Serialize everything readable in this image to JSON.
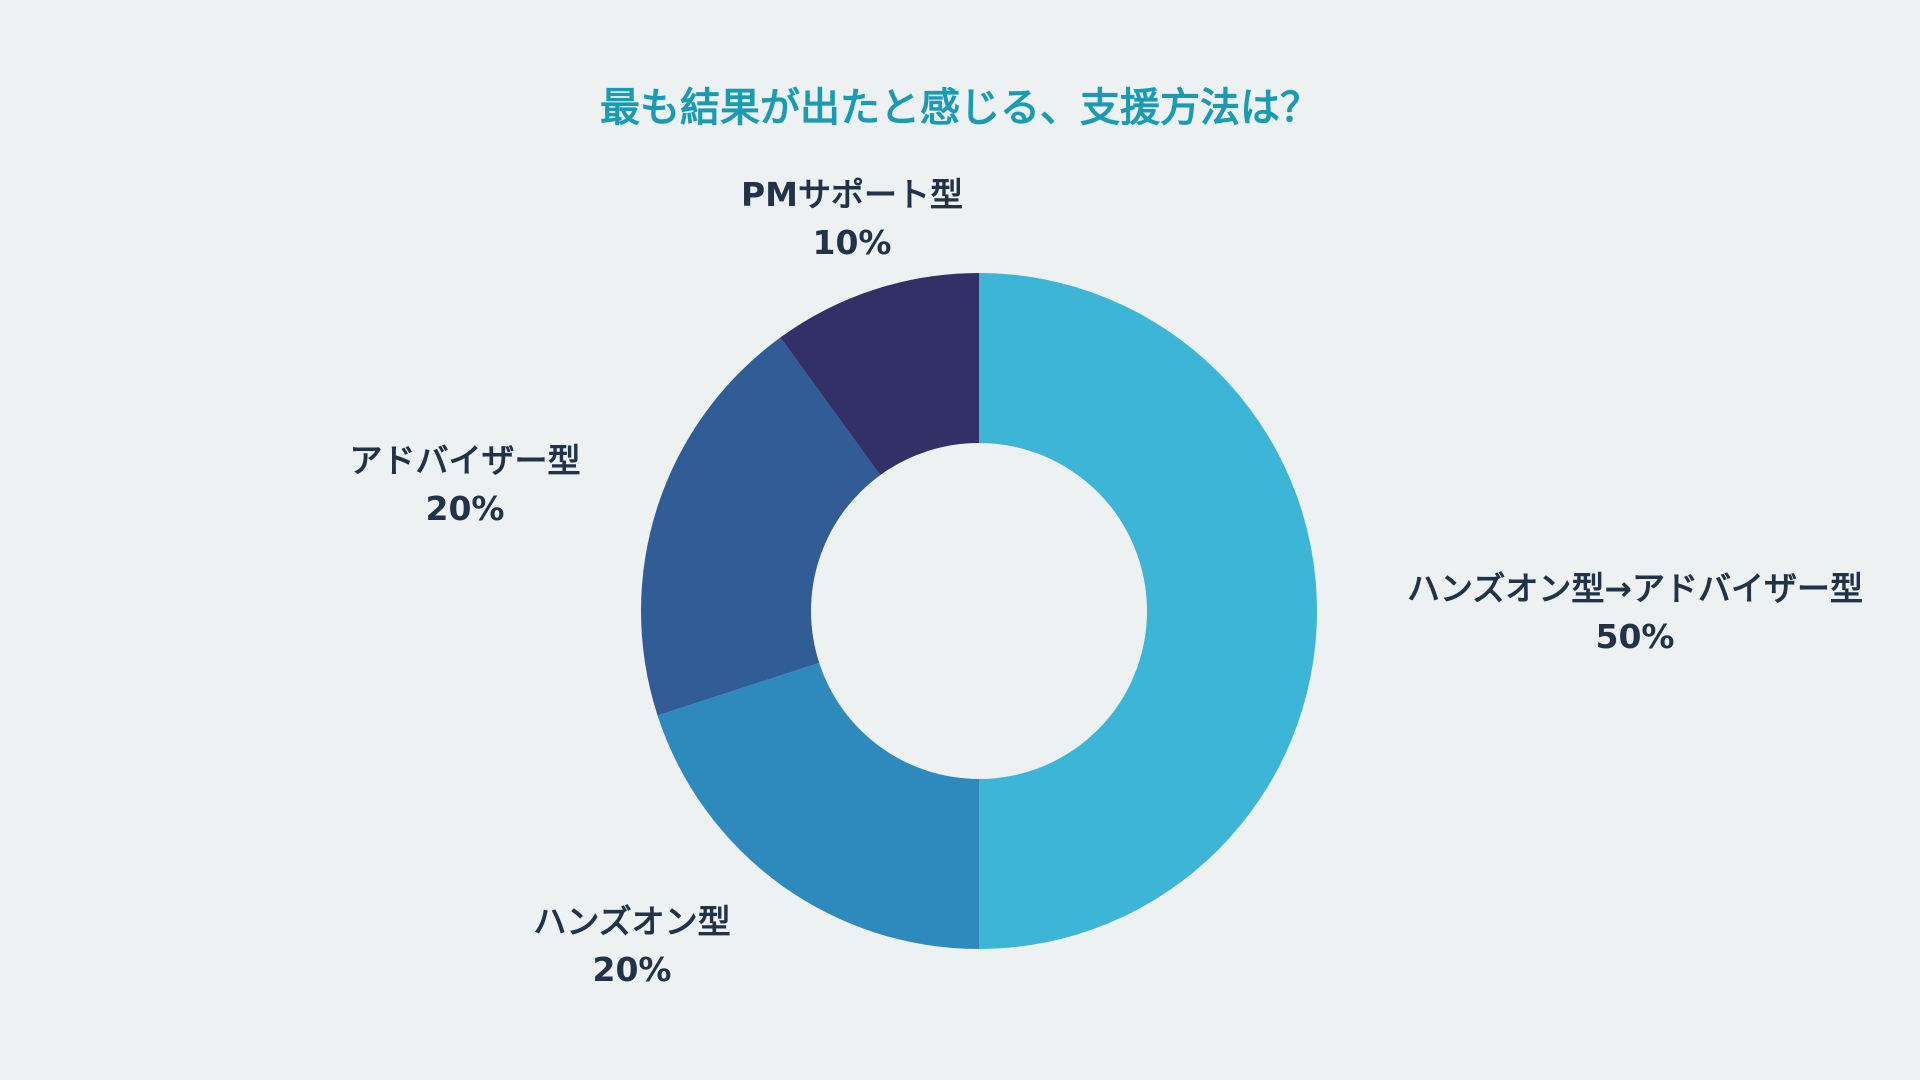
{
  "chart_data": {
    "type": "pie",
    "title": "最も結果が出たと感じる、支援方法は？",
    "slices": [
      {
        "label": "ハンズオン型→アドバイザー型",
        "value": 50,
        "value_label": "50%",
        "color": "#3db5d6"
      },
      {
        "label": "ハンズオン型",
        "value": 20,
        "value_label": "20%",
        "color": "#2e89bc"
      },
      {
        "label": "アドバイザー型",
        "value": 20,
        "value_label": "20%",
        "color": "#315c96"
      },
      {
        "label": "PMサポート型",
        "value": 10,
        "value_label": "10%",
        "color": "#332f67"
      }
    ],
    "donut": true,
    "legend": "none",
    "colors": {
      "background": "#edf1f2",
      "title": "#1a9bb4",
      "label": "#223349"
    }
  }
}
